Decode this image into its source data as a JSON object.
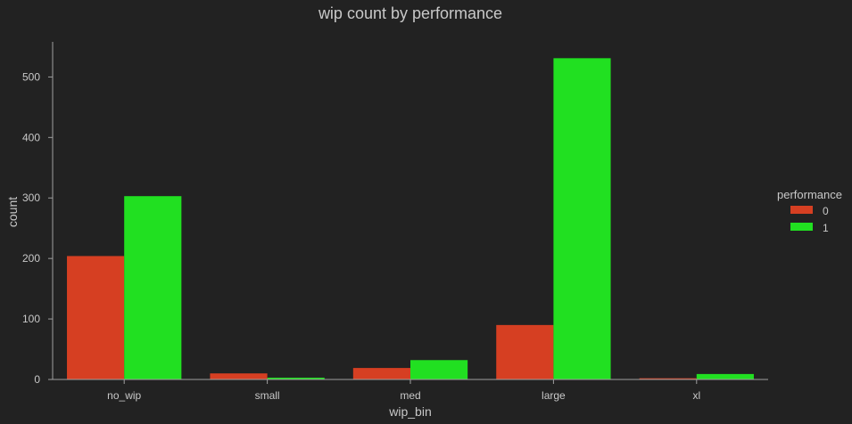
{
  "chart_data": {
    "type": "bar",
    "title": "wip count by performance",
    "xlabel": "wip_bin",
    "ylabel": "count",
    "categories": [
      "no_wip",
      "small",
      "med",
      "large",
      "xl"
    ],
    "series": [
      {
        "name": "0",
        "values": [
          204,
          10,
          19,
          90,
          2
        ],
        "color": "#d63f22"
      },
      {
        "name": "1",
        "values": [
          303,
          3,
          32,
          531,
          9
        ],
        "color": "#21e021"
      }
    ],
    "ylim": [
      0,
      558
    ],
    "yticks": [
      0,
      100,
      200,
      300,
      400,
      500
    ],
    "grid": false,
    "legend": {
      "title": "performance",
      "placement": "right"
    }
  }
}
